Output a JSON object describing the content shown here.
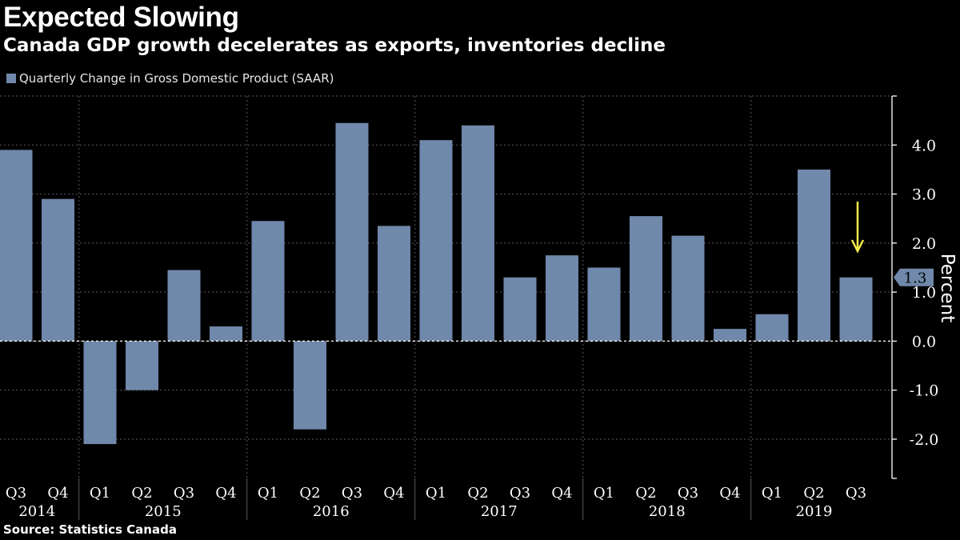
{
  "header": {
    "title": "Expected Slowing",
    "subtitle": "Canada GDP growth decelerates as exports, inventories decline"
  },
  "legend": {
    "label": "Quarterly Change in Gross Domestic Product (SAAR)"
  },
  "footer": {
    "source": "Source:  Statistics Canada"
  },
  "colors": {
    "background": "#000000",
    "bar": "#7088aa",
    "grid": "#5a5a5a",
    "axis": "#ffffff",
    "arrow": "#f2e84b",
    "text": "#ffffff"
  },
  "chart_data": {
    "type": "bar",
    "title": "Expected Slowing",
    "subtitle": "Canada GDP growth decelerates as exports, inventories decline",
    "xlabel": "",
    "ylabel": "Percent",
    "ylim": [
      -2.8,
      5.0
    ],
    "yticks": [
      -2.0,
      -1.0,
      0.0,
      1.0,
      2.0,
      3.0,
      4.0
    ],
    "ytick_labels": [
      "-2.0",
      "-1.0",
      "0.0",
      "1.0",
      "2.0",
      "3.0",
      "4.0"
    ],
    "grid": true,
    "legend_position": "top-left",
    "categories": [
      "Q3",
      "Q4",
      "Q1",
      "Q2",
      "Q3",
      "Q4",
      "Q1",
      "Q2",
      "Q3",
      "Q4",
      "Q1",
      "Q2",
      "Q3",
      "Q4",
      "Q1",
      "Q2",
      "Q3",
      "Q4",
      "Q1",
      "Q2",
      "Q3"
    ],
    "years": [
      {
        "label": "2014",
        "start": 0,
        "end": 1
      },
      {
        "label": "2015",
        "start": 2,
        "end": 5
      },
      {
        "label": "2016",
        "start": 6,
        "end": 9
      },
      {
        "label": "2017",
        "start": 10,
        "end": 13
      },
      {
        "label": "2018",
        "start": 14,
        "end": 17
      },
      {
        "label": "2019",
        "start": 18,
        "end": 20
      }
    ],
    "series": [
      {
        "name": "Quarterly Change in Gross Domestic Product (SAAR)",
        "values": [
          3.9,
          2.9,
          -2.1,
          -1.0,
          1.45,
          0.3,
          2.45,
          -1.8,
          4.45,
          2.35,
          4.1,
          4.4,
          1.3,
          1.75,
          1.5,
          2.55,
          2.15,
          0.25,
          0.55,
          3.5,
          1.3
        ]
      }
    ],
    "last_value_label": "1.3",
    "annotation": "down-arrow over last bar"
  }
}
